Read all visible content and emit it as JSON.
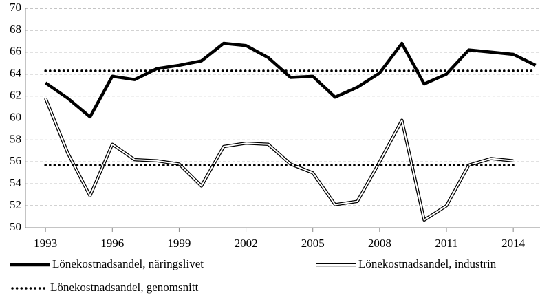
{
  "chart_data": {
    "type": "line",
    "x": [
      1993,
      1994,
      1995,
      1996,
      1997,
      1998,
      1999,
      2000,
      2001,
      2002,
      2003,
      2004,
      2005,
      2006,
      2007,
      2008,
      2009,
      2010,
      2011,
      2012,
      2013,
      2014,
      2015
    ],
    "xlim": [
      1992.1,
      2015.2
    ],
    "xticks": [
      1993,
      1996,
      1999,
      2002,
      2005,
      2008,
      2011,
      2014
    ],
    "ylim": [
      50,
      70
    ],
    "yticks": [
      50,
      52,
      54,
      56,
      58,
      60,
      62,
      64,
      66,
      68,
      70
    ],
    "grid": true,
    "series": [
      {
        "name": "Lönekostnadsandel, näringslivet",
        "color": "#000000",
        "style": "solid",
        "values": [
          63.2,
          61.8,
          60.1,
          63.8,
          63.5,
          64.5,
          64.8,
          65.2,
          66.8,
          66.6,
          65.5,
          63.7,
          63.8,
          61.9,
          62.8,
          64.1,
          66.8,
          63.1,
          64.0,
          66.2,
          66.0,
          65.8,
          64.8
        ]
      },
      {
        "name": "Lönekostnadsandel, industrin",
        "color": "#000000",
        "style": "double",
        "values": [
          61.8,
          56.8,
          52.9,
          57.6,
          56.2,
          56.1,
          55.8,
          53.8,
          57.4,
          57.7,
          57.6,
          55.8,
          55.0,
          52.1,
          52.4,
          56.0,
          59.8,
          50.7,
          52.0,
          55.7,
          56.3,
          56.1,
          null
        ]
      },
      {
        "name": "Lönekostnadsandel, genomsnitt",
        "color": "#000000",
        "style": "dotted",
        "values": [
          64.3,
          64.3,
          64.3,
          64.3,
          64.3,
          64.3,
          64.3,
          64.3,
          64.3,
          64.3,
          64.3,
          64.3,
          64.3,
          64.3,
          64.3,
          64.3,
          64.3,
          64.3,
          64.3,
          64.3,
          64.3,
          64.3,
          64.3
        ]
      },
      {
        "color": "#000000",
        "style": "dotted",
        "values": [
          55.7,
          55.7,
          55.7,
          55.7,
          55.7,
          55.7,
          55.7,
          55.7,
          55.7,
          55.7,
          55.7,
          55.7,
          55.7,
          55.7,
          55.7,
          55.7,
          55.7,
          55.7,
          55.7,
          55.7,
          55.7,
          55.7,
          null
        ]
      }
    ]
  }
}
